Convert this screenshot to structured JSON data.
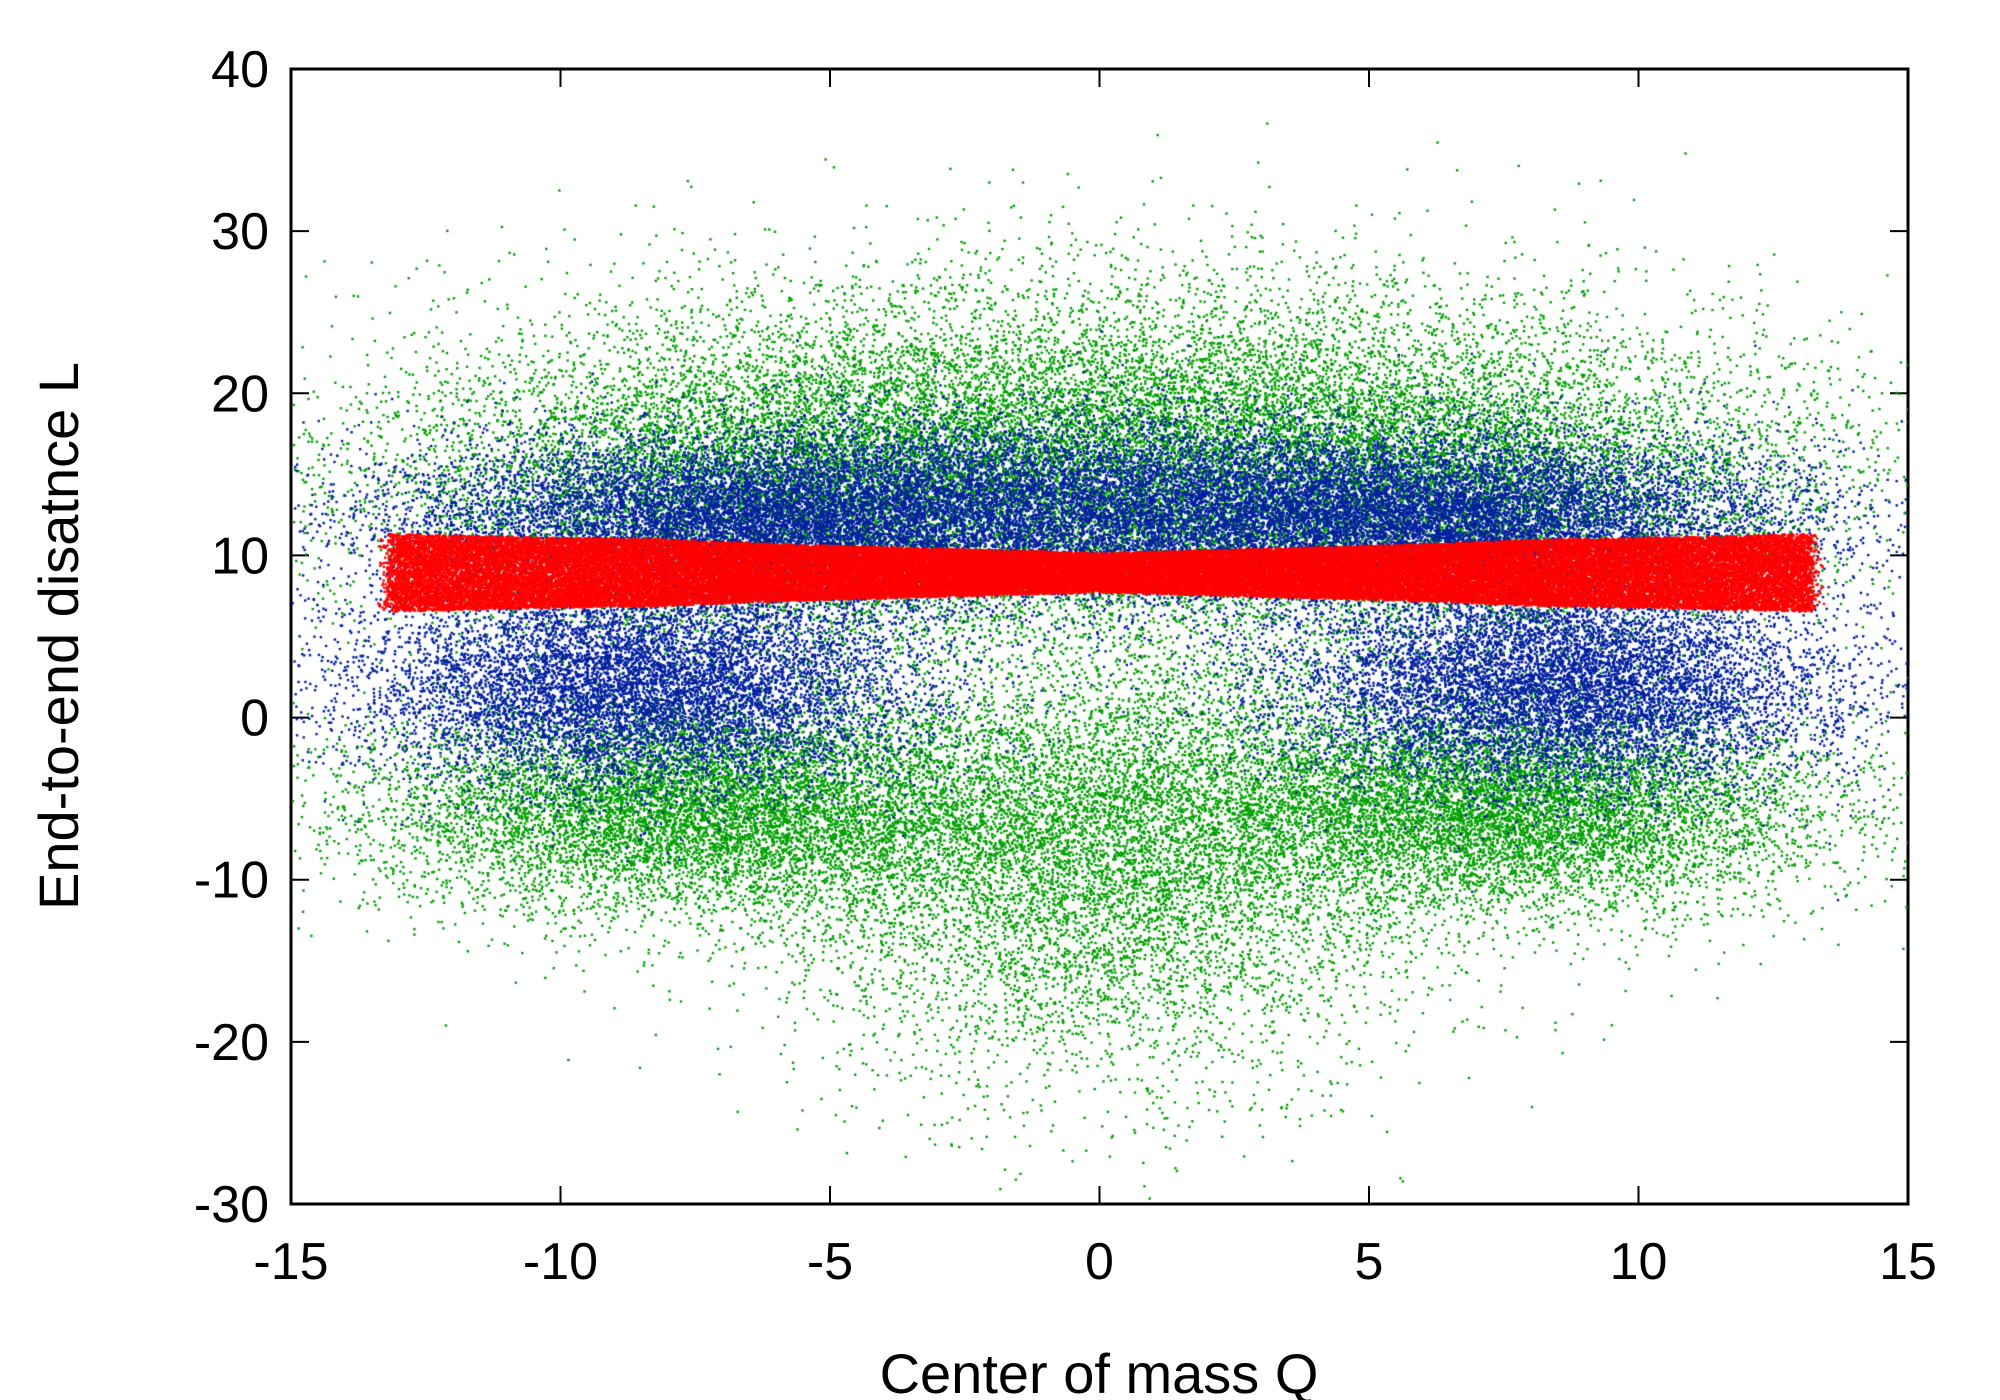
{
  "chart_data": {
    "type": "scatter",
    "title": "",
    "xlabel": "Center of mass Q",
    "ylabel": "End-to-end disatnce L",
    "xlim": [
      -15,
      15
    ],
    "ylim": [
      -30,
      40
    ],
    "xticks": [
      -15,
      -10,
      -5,
      0,
      5,
      10,
      15
    ],
    "yticks": [
      -30,
      -20,
      -10,
      0,
      10,
      20,
      30,
      40
    ],
    "xtick_labels": [
      "-15",
      "-10",
      "-5",
      "0",
      "5",
      "10",
      "15"
    ],
    "ytick_labels": [
      "-30",
      "-20",
      "-10",
      "0",
      "10",
      "20",
      "30",
      "40"
    ],
    "grid": false,
    "legend": "none",
    "series": [
      {
        "color": "#00a000",
        "description_points": "broad cloud; Q approx -14..14, L approx -27..32; lobes near (-7,-6) and (7,-6), arch over Q=0 up to ~30",
        "regions": [
          {
            "center": [
              -7.5,
              -5.5
            ],
            "spread": [
              3.0,
              3.2
            ]
          },
          {
            "center": [
              7.5,
              -5.5
            ],
            "spread": [
              3.0,
              3.2
            ]
          },
          {
            "center": [
              0.0,
              18.0
            ],
            "spread": [
              5.5,
              5.0
            ]
          },
          {
            "center": [
              -5.5,
              14.0
            ],
            "spread": [
              4.0,
              4.5
            ]
          },
          {
            "center": [
              5.5,
              14.0
            ],
            "spread": [
              4.0,
              4.5
            ]
          },
          {
            "center": [
              0.0,
              -8.0
            ],
            "spread": [
              3.0,
              7.0
            ]
          }
        ]
      },
      {
        "color": "#0020a0",
        "regions": [
          {
            "center": [
              -8.5,
              2.0
            ],
            "spread": [
              2.6,
              3.2
            ]
          },
          {
            "center": [
              8.5,
              2.0
            ],
            "spread": [
              2.6,
              3.2
            ]
          },
          {
            "center": [
              0.0,
              13.5
            ],
            "spread": [
              5.5,
              2.8
            ]
          },
          {
            "center": [
              -6.0,
              12.0
            ],
            "spread": [
              3.5,
              2.5
            ]
          },
          {
            "center": [
              6.0,
              12.0
            ],
            "spread": [
              3.5,
              2.5
            ]
          }
        ]
      },
      {
        "color": "#ff0000",
        "band": {
          "x_range": [
            -13.2,
            13.2
          ],
          "center_y": 9.0,
          "half_width_edge": 2.4,
          "half_width_mid": 1.2
        }
      }
    ]
  }
}
